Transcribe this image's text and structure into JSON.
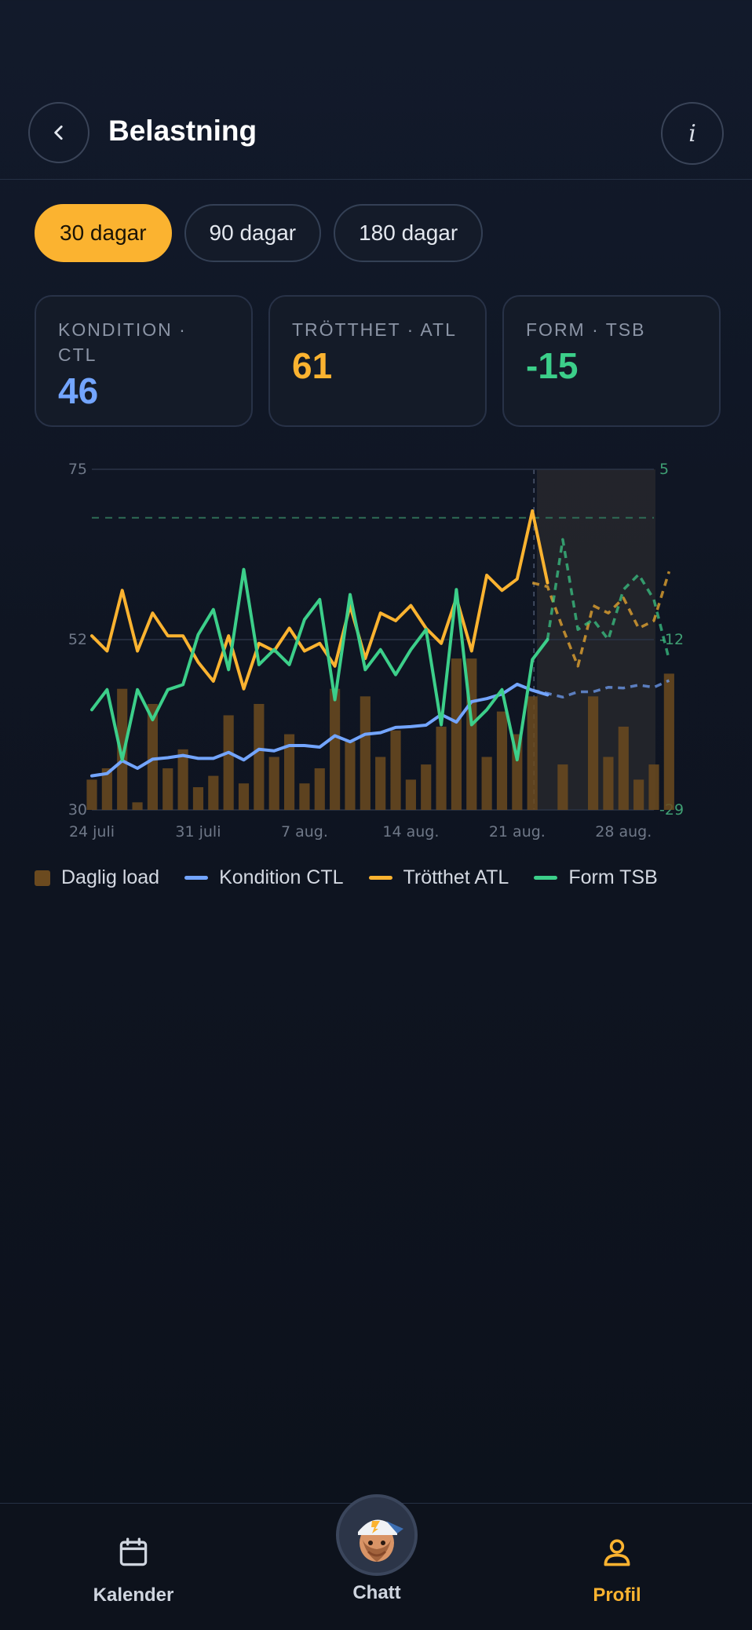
{
  "header": {
    "title": "Belastning",
    "back_icon": "chevron-left-icon",
    "info_label": "i"
  },
  "periods": [
    {
      "label": "30 dagar",
      "active": true
    },
    {
      "label": "90 dagar",
      "active": false
    },
    {
      "label": "180 dagar",
      "active": false
    }
  ],
  "cards": [
    {
      "label": "KONDITION · CTL",
      "value": "46",
      "color": "#73a5ff"
    },
    {
      "label": "TRÖTTHET · ATL",
      "value": "61",
      "color": "#fbb330"
    },
    {
      "label": "FORM · TSB",
      "value": "-15",
      "color": "#3ccf8a"
    }
  ],
  "chart_data": {
    "type": "line",
    "x_labels": [
      "24 juli",
      "31 juli",
      "7 aug.",
      "14 aug.",
      "21 aug.",
      "28 aug."
    ],
    "left_axis": {
      "ticks": [
        "75",
        "52",
        "30"
      ],
      "range": [
        30,
        75
      ]
    },
    "right_axis": {
      "ticks": [
        "5",
        "-12",
        "-29"
      ],
      "range": [
        -29,
        5
      ]
    },
    "reference_line_left": 68.6,
    "forecast_start_day": 29,
    "days": 38,
    "series": [
      {
        "name": "Daglig load",
        "kind": "bar",
        "color": "#6b4a1f",
        "values": [
          34,
          35.5,
          46,
          31,
          44,
          35.5,
          38,
          33,
          34.5,
          42.5,
          33.5,
          44,
          37,
          40,
          33.5,
          35.5,
          46,
          39,
          45,
          37,
          40.5,
          34,
          36,
          41,
          50,
          50,
          37,
          43,
          40,
          45,
          0,
          36,
          0,
          45,
          37,
          41,
          34,
          36,
          48
        ]
      },
      {
        "name": "Kondition CTL",
        "kind": "line",
        "color": "#73a5ff",
        "values": [
          34.5,
          34.8,
          36.5,
          35.5,
          36.7,
          36.9,
          37.2,
          36.8,
          36.8,
          37.6,
          36.6,
          38,
          37.8,
          38.5,
          38.5,
          38.3,
          39.8,
          39,
          40,
          40.2,
          40.9,
          41,
          41.2,
          42.6,
          41.6,
          44.3,
          44.7,
          45.3,
          46.6,
          45.8,
          45.2
        ]
      },
      {
        "name": "Trötthet ATL",
        "kind": "line",
        "color": "#fbb330",
        "values": [
          53,
          51,
          59,
          51,
          56,
          53,
          53,
          49.5,
          47,
          53,
          46,
          52,
          51,
          54,
          51,
          52,
          49,
          57,
          50,
          56,
          55,
          57,
          54,
          52,
          58,
          51,
          61,
          59,
          60.5,
          69.5,
          60
        ]
      },
      {
        "name": "Form TSB",
        "kind": "line",
        "color": "#3ccf8a",
        "values": [
          -19,
          -17,
          -24,
          -17,
          -20,
          -17,
          -16.5,
          -11.5,
          -9,
          -15,
          -5,
          -14.5,
          -13,
          -14.5,
          -10,
          -8,
          -18,
          -7.5,
          -15,
          -13,
          -15.5,
          -13,
          -11,
          -20.5,
          -7,
          -20.5,
          -19,
          -17,
          -24,
          -14,
          -12
        ]
      },
      {
        "name": "Kondition CTL prognos",
        "kind": "forecast",
        "color": "#73a5ff",
        "values": [
          45.8,
          45.4,
          44.9,
          45.6,
          45.6,
          46.2,
          46.1,
          46.5,
          46.2,
          47.1
        ]
      },
      {
        "name": "Trötthet ATL prognos",
        "kind": "forecast",
        "color": "#fbb330",
        "values": [
          60,
          59.5,
          54,
          49,
          57,
          56,
          58,
          54,
          55,
          61.5
        ]
      },
      {
        "name": "Form TSB prognos",
        "kind": "forecast",
        "color": "#3ccf8a",
        "values": [
          -14,
          -12,
          -2,
          -11,
          -10,
          -12,
          -7,
          -5.5,
          -8,
          -14
        ]
      }
    ]
  },
  "legend": [
    {
      "label": "Daglig load",
      "kind": "swatch",
      "color": "#6b4a1f"
    },
    {
      "label": "Kondition CTL",
      "kind": "line",
      "color": "#73a5ff"
    },
    {
      "label": "Trötthet ATL",
      "kind": "line",
      "color": "#fbb330"
    },
    {
      "label": "Form TSB",
      "kind": "line",
      "color": "#3ccf8a"
    }
  ],
  "nav": {
    "calendar_label": "Kalender",
    "chat_label": "Chatt",
    "profile_label": "Profil"
  }
}
